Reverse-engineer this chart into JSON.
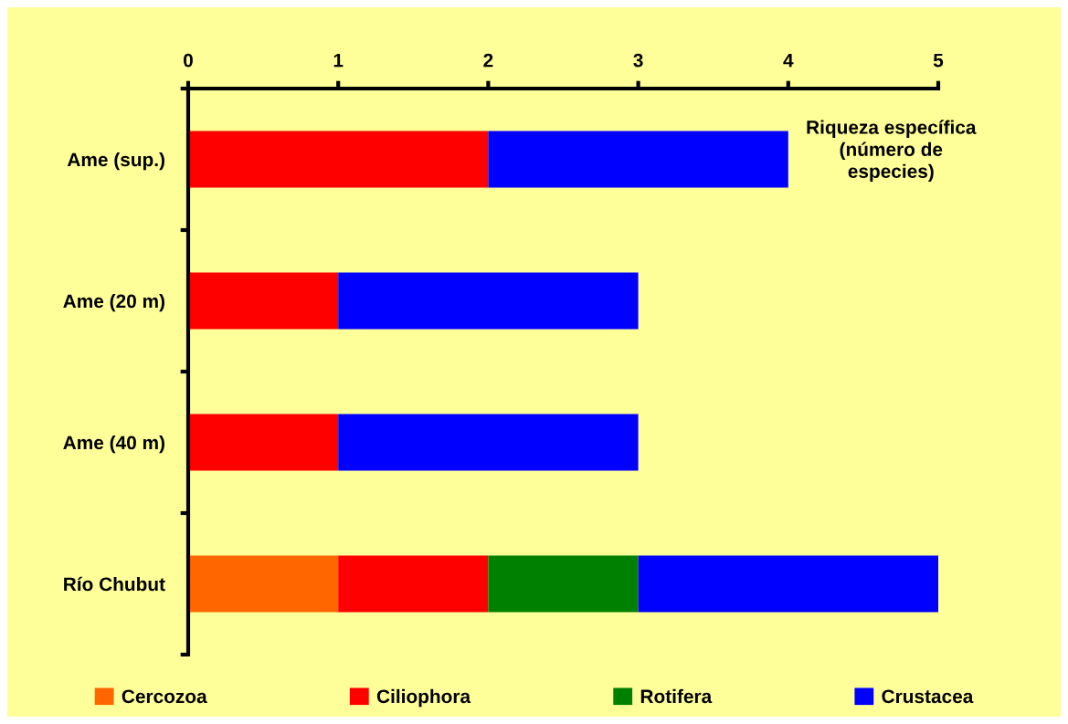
{
  "chart_data": {
    "type": "bar",
    "orientation": "horizontal",
    "stacked": true,
    "xlabel": "Riqueza específica\n(número de\nespecies)",
    "categories": [
      "Ame (sup.)",
      "Ame (20 m)",
      "Ame (40 m)",
      "Río Chubut"
    ],
    "series": [
      {
        "name": "Cercozoa",
        "color": "#ff6600",
        "values": [
          0,
          0,
          0,
          1
        ]
      },
      {
        "name": "Ciliophora",
        "color": "#ff0000",
        "values": [
          2,
          1,
          1,
          1
        ]
      },
      {
        "name": "Rotifera",
        "color": "#008000",
        "values": [
          0,
          0,
          0,
          1
        ]
      },
      {
        "name": "Crustacea",
        "color": "#0000ff",
        "values": [
          2,
          2,
          2,
          2
        ]
      }
    ],
    "xlim": [
      0,
      5
    ],
    "xticks": [
      0,
      1,
      2,
      3,
      4,
      5
    ],
    "legend": "bottom"
  }
}
